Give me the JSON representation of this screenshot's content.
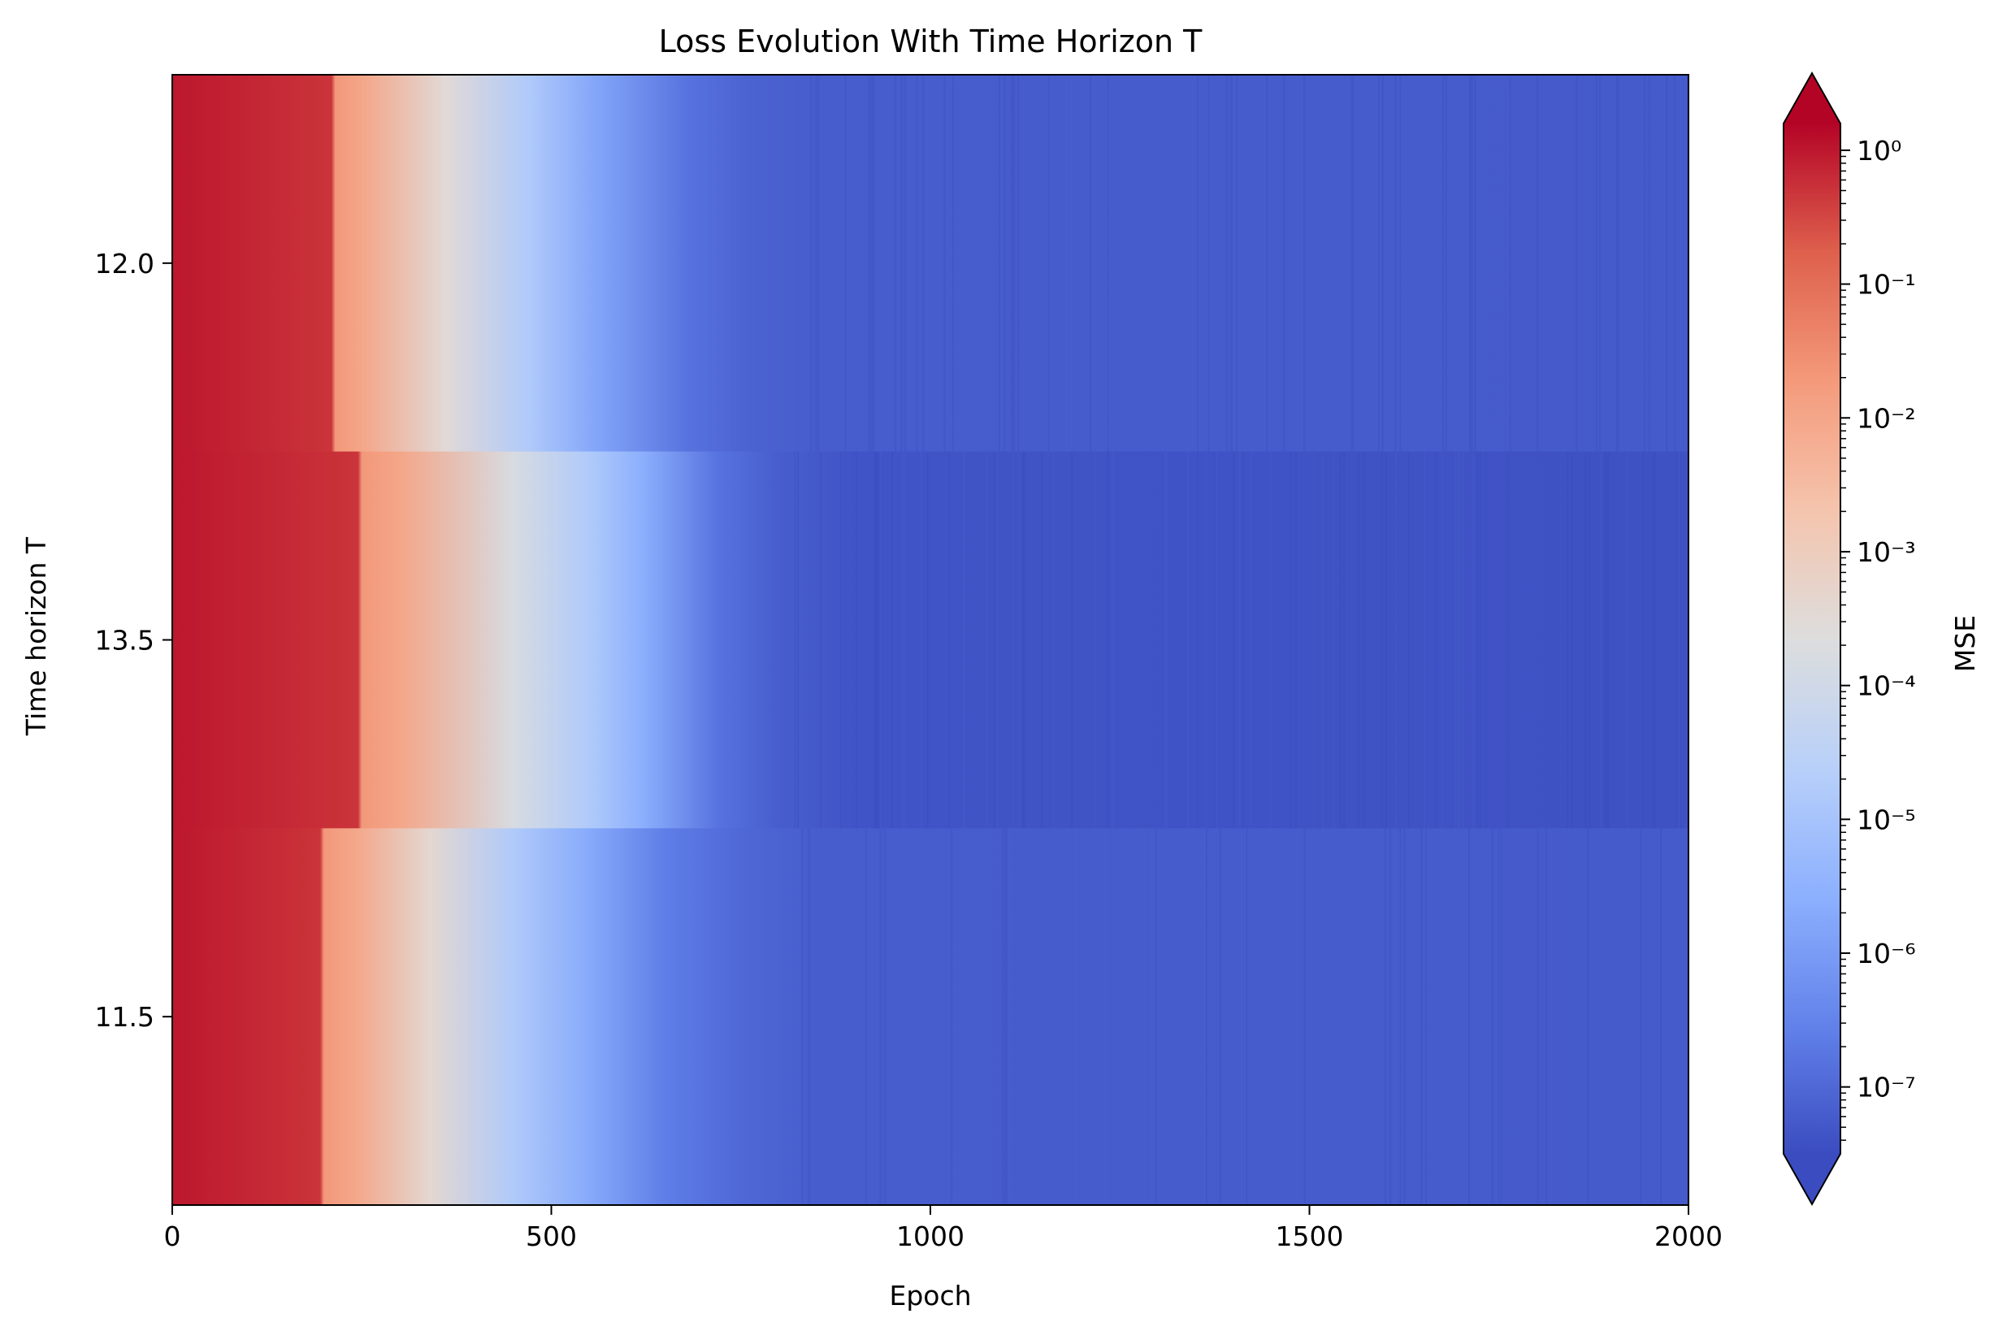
{
  "chart_data": {
    "type": "heatmap",
    "title": "Loss Evolution With Time Horizon T",
    "xlabel": "Epoch",
    "ylabel": "Time horizon T",
    "xlim": [
      0,
      2000
    ],
    "x_ticks": [
      "0",
      "500",
      "1000",
      "1500",
      "2000"
    ],
    "rows": [
      {
        "label": "12.0",
        "mse_log10_profile": [
          [
            0,
            0.0
          ],
          [
            210,
            -0.3
          ],
          [
            215,
            -1.7
          ],
          [
            250,
            -2.0
          ],
          [
            360,
            -3.5
          ],
          [
            470,
            -4.8
          ],
          [
            560,
            -5.8
          ],
          [
            680,
            -6.8
          ],
          [
            760,
            -7.1
          ],
          [
            850,
            -7.2
          ],
          [
            2000,
            -7.25
          ]
        ]
      },
      {
        "label": "13.5",
        "mse_log10_profile": [
          [
            0,
            0.0
          ],
          [
            245,
            -0.3
          ],
          [
            250,
            -1.7
          ],
          [
            300,
            -2.0
          ],
          [
            450,
            -3.8
          ],
          [
            550,
            -4.8
          ],
          [
            620,
            -5.6
          ],
          [
            720,
            -6.8
          ],
          [
            800,
            -7.2
          ],
          [
            900,
            -7.35
          ],
          [
            2000,
            -7.4
          ]
        ]
      },
      {
        "label": "11.5",
        "mse_log10_profile": [
          [
            0,
            0.0
          ],
          [
            195,
            -0.3
          ],
          [
            200,
            -1.7
          ],
          [
            240,
            -2.0
          ],
          [
            340,
            -3.4
          ],
          [
            450,
            -4.8
          ],
          [
            550,
            -5.7
          ],
          [
            650,
            -6.6
          ],
          [
            750,
            -7.0
          ],
          [
            850,
            -7.2
          ],
          [
            2000,
            -7.25
          ]
        ]
      }
    ],
    "colorbar": {
      "label": "MSE",
      "scale": "log",
      "colormap": "coolwarm",
      "extend": "both",
      "range_log10": [
        -7.5,
        0.2
      ],
      "ticks": [
        {
          "exp": 0,
          "label": "10⁰"
        },
        {
          "exp": -1,
          "label": "10⁻¹"
        },
        {
          "exp": -2,
          "label": "10⁻²"
        },
        {
          "exp": -3,
          "label": "10⁻³"
        },
        {
          "exp": -4,
          "label": "10⁻⁴"
        },
        {
          "exp": -5,
          "label": "10⁻⁵"
        },
        {
          "exp": -6,
          "label": "10⁻⁶"
        },
        {
          "exp": -7,
          "label": "10⁻⁷"
        }
      ]
    },
    "grid": false
  }
}
